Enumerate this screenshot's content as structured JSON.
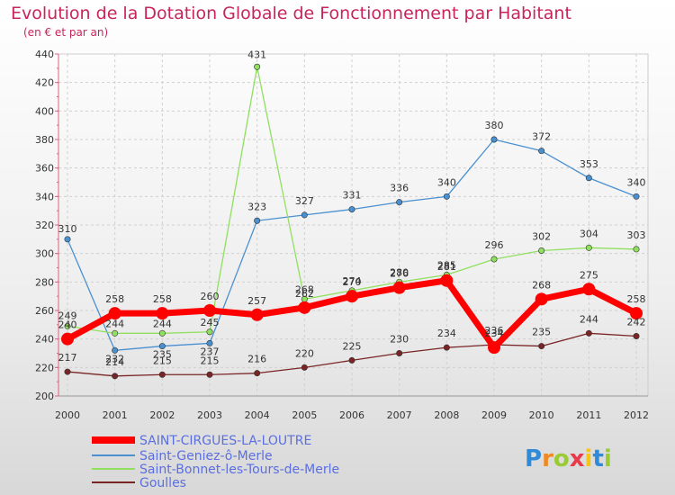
{
  "logo": {
    "text": "Proxiti"
  },
  "chart_data": {
    "type": "line",
    "title": "Evolution de la Dotation Globale de Fonctionnement par Habitant",
    "subtitle": "(en € et par an)",
    "xlabel": "",
    "ylabel": "",
    "categories": [
      "2000",
      "2001",
      "2002",
      "2003",
      "2004",
      "2005",
      "2006",
      "2007",
      "2008",
      "2009",
      "2010",
      "2011",
      "2012"
    ],
    "ylim": [
      200,
      440
    ],
    "yticks": [
      200,
      220,
      240,
      260,
      280,
      300,
      320,
      340,
      360,
      380,
      400,
      420,
      440
    ],
    "grid": true,
    "legend_position": "bottom-left",
    "series": [
      {
        "name": "SAINT-CIRGUES-LA-LOUTRE",
        "color": "#ff0000",
        "width": 7,
        "marker": 7,
        "values": [
          240,
          258,
          258,
          260,
          257,
          262,
          270,
          276,
          281,
          234,
          268,
          275,
          258
        ]
      },
      {
        "name": "Saint-Geniez-ô-Merle",
        "color": "#4a90d0",
        "width": 1.3,
        "marker": 3.2,
        "values": [
          310,
          232,
          235,
          237,
          323,
          327,
          331,
          336,
          340,
          380,
          372,
          353,
          340
        ]
      },
      {
        "name": "Saint-Bonnet-les-Tours-de-Merle",
        "color": "#90e060",
        "width": 1.3,
        "marker": 3.2,
        "values": [
          249,
          244,
          244,
          245,
          431,
          268,
          274,
          280,
          285,
          296,
          302,
          304,
          303
        ]
      },
      {
        "name": "Goulles",
        "color": "#7a2525",
        "width": 1.3,
        "marker": 3.2,
        "values": [
          217,
          214,
          215,
          215,
          216,
          220,
          225,
          230,
          234,
          236,
          235,
          244,
          242
        ]
      }
    ]
  }
}
